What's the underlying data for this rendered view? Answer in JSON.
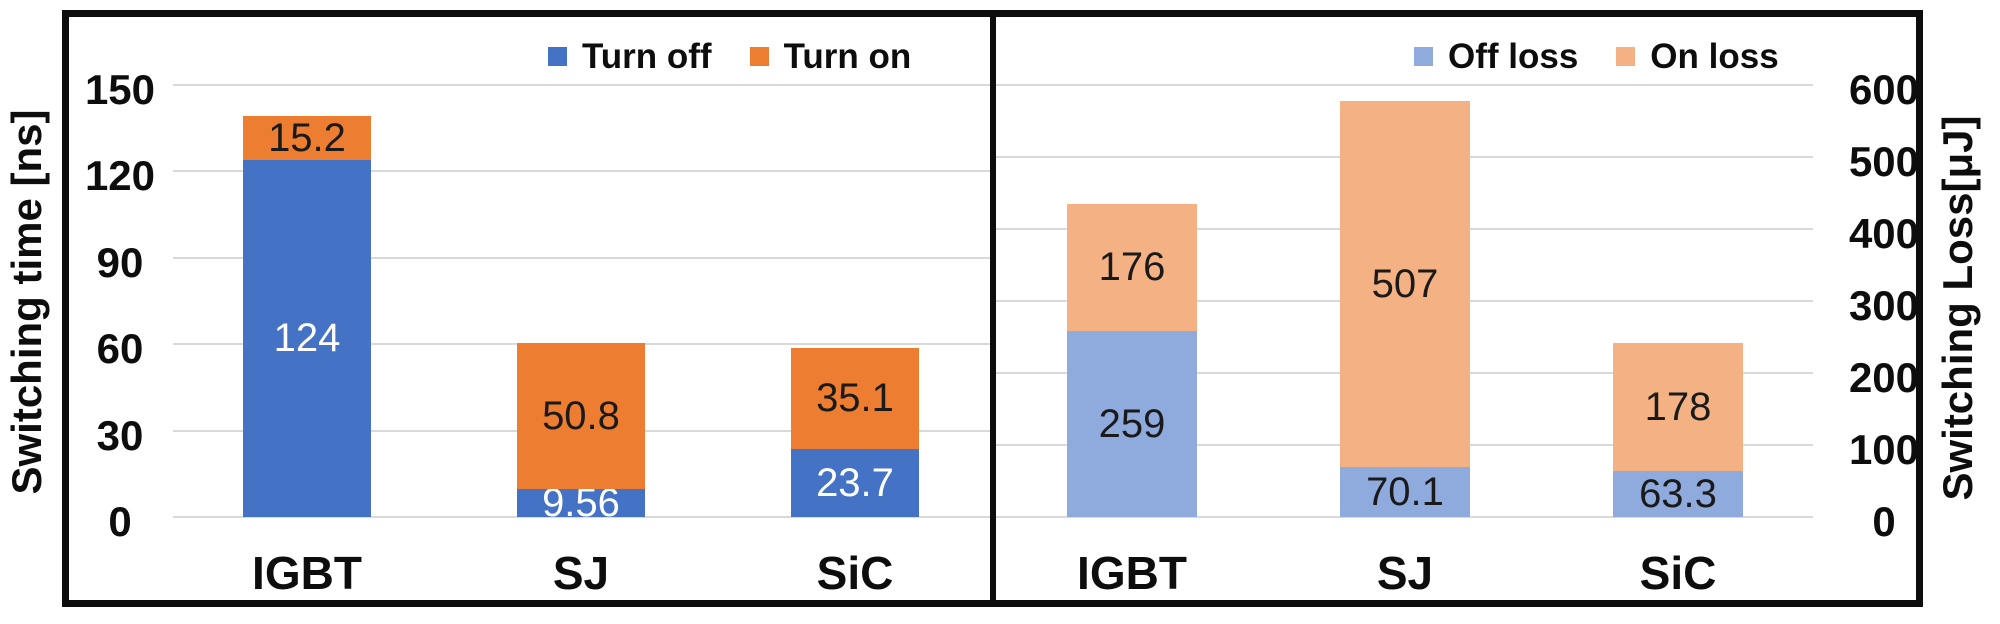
{
  "figure": {
    "left_axis_title": "Switching time [ns]",
    "right_axis_title": "Switching Loss[μJ]",
    "border_color": "#0d0d0d",
    "gridline_color": "#d9d9d9",
    "background_color": "#ffffff"
  },
  "chart_data": [
    {
      "id": "time",
      "type": "bar",
      "stacked": true,
      "panel": "left",
      "title": "",
      "ylabel": "Switching time [ns]",
      "xlabel": "",
      "categories": [
        "IGBT",
        "SJ",
        "SiC"
      ],
      "series": [
        {
          "name": "Turn off",
          "values": [
            124,
            9.56,
            23.7
          ],
          "labels": [
            "124",
            "9.56",
            "23.7"
          ],
          "color": "#4472C4",
          "label_color": "#ffffff"
        },
        {
          "name": "Turn on",
          "values": [
            15.2,
            50.8,
            35.1
          ],
          "labels": [
            "15.2",
            "50.8",
            "35.1"
          ],
          "color": "#ED7D31",
          "label_color": "#1a1a1a"
        }
      ],
      "ylim": [
        0,
        150
      ],
      "ytick_step": 30,
      "yticks": [
        "0",
        "30",
        "60",
        "90",
        "120",
        "150"
      ],
      "yaxis_side": "left",
      "grid": true,
      "legend_position": "top-right"
    },
    {
      "id": "loss",
      "type": "bar",
      "stacked": true,
      "panel": "right",
      "title": "",
      "ylabel": "Switching Loss[μJ]",
      "xlabel": "",
      "categories": [
        "IGBT",
        "SJ",
        "SiC"
      ],
      "series": [
        {
          "name": "Off loss",
          "values": [
            259,
            70.1,
            63.3
          ],
          "labels": [
            "259",
            "70.1",
            "63.3"
          ],
          "color": "#8FAADC",
          "label_color": "#1a1a1a"
        },
        {
          "name": "On loss",
          "values": [
            176,
            507,
            178
          ],
          "labels": [
            "176",
            "507",
            "178"
          ],
          "color": "#F4B183",
          "label_color": "#1a1a1a"
        }
      ],
      "ylim": [
        0,
        600
      ],
      "ytick_step": 100,
      "yticks": [
        "0",
        "100",
        "200",
        "300",
        "400",
        "500",
        "600"
      ],
      "yaxis_side": "right",
      "grid": true,
      "legend_position": "top-right"
    }
  ]
}
